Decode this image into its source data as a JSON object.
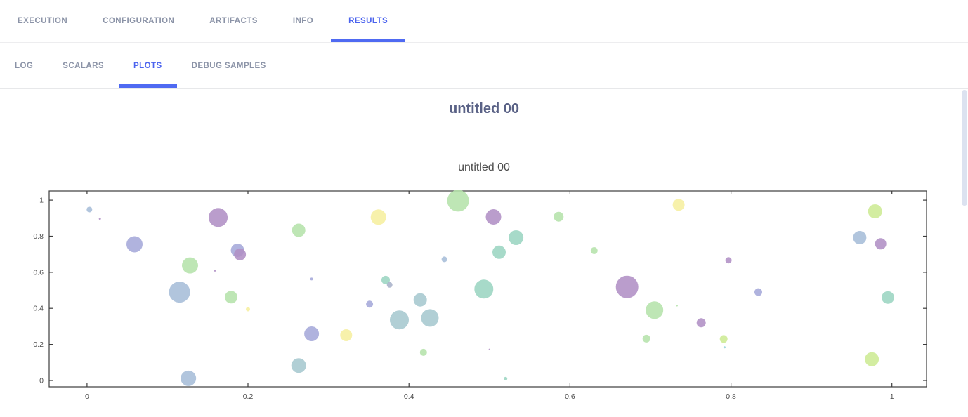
{
  "tabs": {
    "primary": [
      {
        "label": "EXECUTION",
        "active": false
      },
      {
        "label": "CONFIGURATION",
        "active": false
      },
      {
        "label": "ARTIFACTS",
        "active": false
      },
      {
        "label": "INFO",
        "active": false
      },
      {
        "label": "RESULTS",
        "active": true
      }
    ],
    "secondary": [
      {
        "label": "LOG",
        "active": false
      },
      {
        "label": "SCALARS",
        "active": false
      },
      {
        "label": "PLOTS",
        "active": true
      },
      {
        "label": "DEBUG SAMPLES",
        "active": false
      }
    ]
  },
  "content": {
    "group_title": "untitled 00",
    "chart_title": "untitled 00"
  },
  "colors": {
    "accent": "#4f6af2",
    "tab_inactive": "#8b93a7",
    "group_title": "#5a6286",
    "chart_title": "#4d4d4d",
    "axis": "#3d3d3d",
    "scrollbar": "#dce2f0"
  },
  "chart_data": {
    "type": "scatter",
    "title": "untitled 00",
    "xlabel": "",
    "ylabel": "",
    "xlim": [
      -0.047,
      1.043
    ],
    "ylim": [
      -0.035,
      1.051
    ],
    "xticks": [
      0,
      0.2,
      0.4,
      0.6,
      0.8,
      1
    ],
    "yticks": [
      0,
      0.2,
      0.4,
      0.6,
      0.8,
      1
    ],
    "grid": false,
    "legend": "none",
    "marker_opacity": 0.88,
    "palette": {
      "blue": "#a6bdd8",
      "periwinkle": "#a5a9d9",
      "slate": "#a9b2ca",
      "purple": "#b190c5",
      "green": "#b5e3ab",
      "teal": "#9bd5c2",
      "steelteal": "#a6c8cf",
      "yellow": "#f6ef9f",
      "yellowgreen": "#cdea94",
      "cyan": "#93d2dc"
    },
    "points": [
      [
        0.003,
        0.948,
        4,
        "blue"
      ],
      [
        0.016,
        0.897,
        1.5,
        "purple"
      ],
      [
        0.059,
        0.755,
        11.5,
        "periwinkle"
      ],
      [
        0.115,
        0.49,
        15,
        "blue"
      ],
      [
        0.128,
        0.638,
        11.5,
        "green"
      ],
      [
        0.126,
        0.012,
        11,
        "blue"
      ],
      [
        0.159,
        0.608,
        1.2,
        "purple"
      ],
      [
        0.163,
        0.904,
        13.5,
        "purple"
      ],
      [
        0.179,
        0.462,
        9,
        "green"
      ],
      [
        0.187,
        0.722,
        9.5,
        "periwinkle"
      ],
      [
        0.19,
        0.699,
        8.5,
        "purple"
      ],
      [
        0.2,
        0.395,
        3,
        "yellow"
      ],
      [
        0.263,
        0.833,
        9.5,
        "green"
      ],
      [
        0.263,
        0.083,
        10.5,
        "steelteal"
      ],
      [
        0.279,
        0.259,
        10.5,
        "periwinkle"
      ],
      [
        0.279,
        0.563,
        2,
        "periwinkle"
      ],
      [
        0.322,
        0.251,
        8.5,
        "yellow"
      ],
      [
        0.351,
        0.423,
        5,
        "periwinkle"
      ],
      [
        0.362,
        0.906,
        11,
        "yellow"
      ],
      [
        0.371,
        0.557,
        6,
        "teal"
      ],
      [
        0.376,
        0.53,
        4,
        "slate"
      ],
      [
        0.388,
        0.336,
        13.5,
        "steelteal"
      ],
      [
        0.414,
        0.447,
        9.5,
        "steelteal"
      ],
      [
        0.418,
        0.156,
        5,
        "green"
      ],
      [
        0.426,
        0.347,
        12.5,
        "steelteal"
      ],
      [
        0.444,
        0.672,
        4,
        "blue"
      ],
      [
        0.461,
        0.997,
        15.5,
        "green"
      ],
      [
        0.493,
        0.507,
        13.5,
        "teal"
      ],
      [
        0.5,
        0.172,
        1.2,
        "purple"
      ],
      [
        0.505,
        0.907,
        11,
        "purple"
      ],
      [
        0.512,
        0.711,
        9.5,
        "teal"
      ],
      [
        0.52,
        0.01,
        2.5,
        "teal"
      ],
      [
        0.533,
        0.792,
        10.5,
        "teal"
      ],
      [
        0.586,
        0.908,
        7,
        "green"
      ],
      [
        0.63,
        0.72,
        5,
        "green"
      ],
      [
        0.671,
        0.519,
        16,
        "purple"
      ],
      [
        0.695,
        0.232,
        5.5,
        "green"
      ],
      [
        0.705,
        0.39,
        12.5,
        "green"
      ],
      [
        0.733,
        0.415,
        1.2,
        "green"
      ],
      [
        0.735,
        0.974,
        8.5,
        "yellow"
      ],
      [
        0.763,
        0.32,
        6.5,
        "purple"
      ],
      [
        0.791,
        0.23,
        5.5,
        "yellowgreen"
      ],
      [
        0.792,
        0.184,
        1.5,
        "cyan"
      ],
      [
        0.797,
        0.667,
        4.5,
        "purple"
      ],
      [
        0.834,
        0.49,
        5.5,
        "periwinkle"
      ],
      [
        0.96,
        0.792,
        9.5,
        "blue"
      ],
      [
        0.975,
        0.118,
        10,
        "yellowgreen"
      ],
      [
        0.979,
        0.938,
        10,
        "yellowgreen"
      ],
      [
        0.986,
        0.758,
        8,
        "purple"
      ],
      [
        0.995,
        0.46,
        9,
        "teal"
      ]
    ]
  }
}
